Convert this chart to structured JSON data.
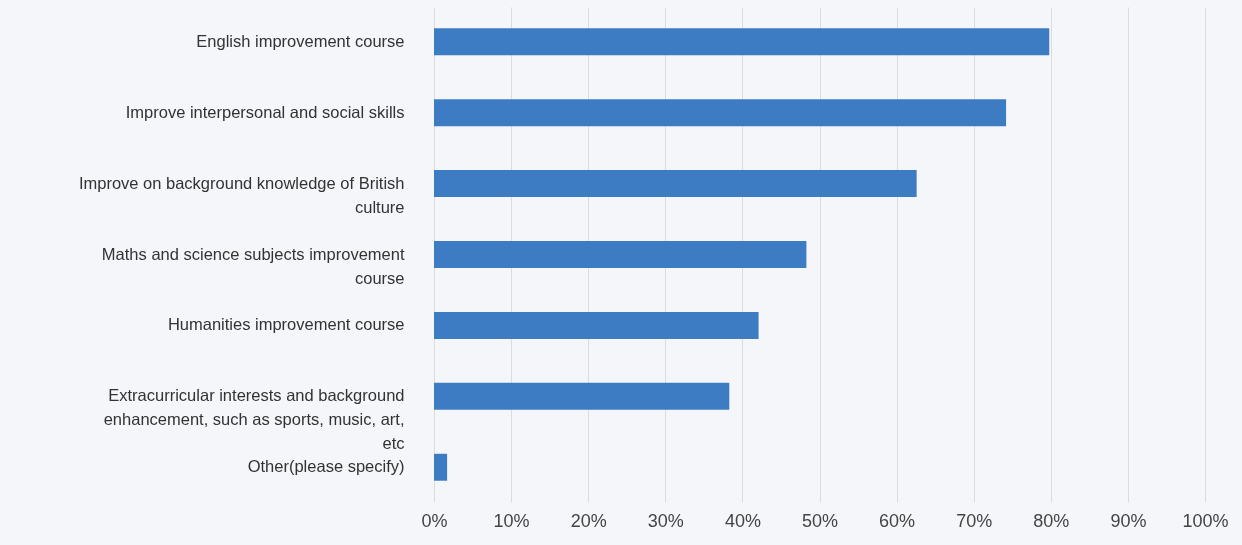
{
  "chart_data": {
    "type": "bar",
    "orientation": "horizontal",
    "categories": [
      "English improvement course",
      "Improve interpersonal and social skills",
      "Improve on background knowledge of British culture",
      "Maths and science subjects improvement course",
      "Humanities improvement course",
      "Extracurricular interests and background enhancement, such as sports, music, art, etc",
      "Other(please specify)"
    ],
    "values": [
      79.8,
      74.2,
      62.6,
      48.3,
      42.1,
      38.3,
      1.7
    ],
    "color": "#3d7cc3",
    "xlim": [
      0,
      100
    ],
    "xticks": [
      {
        "value": 0,
        "label": "0%"
      },
      {
        "value": 10,
        "label": "10%"
      },
      {
        "value": 20,
        "label": "20%"
      },
      {
        "value": 30,
        "label": "30%"
      },
      {
        "value": 40,
        "label": "40%"
      },
      {
        "value": 50,
        "label": "50%"
      },
      {
        "value": 60,
        "label": "60%"
      },
      {
        "value": 70,
        "label": "70%"
      },
      {
        "value": 80,
        "label": "80%"
      },
      {
        "value": 90,
        "label": "90%"
      },
      {
        "value": 100,
        "label": "100%"
      }
    ],
    "grid": "x"
  }
}
